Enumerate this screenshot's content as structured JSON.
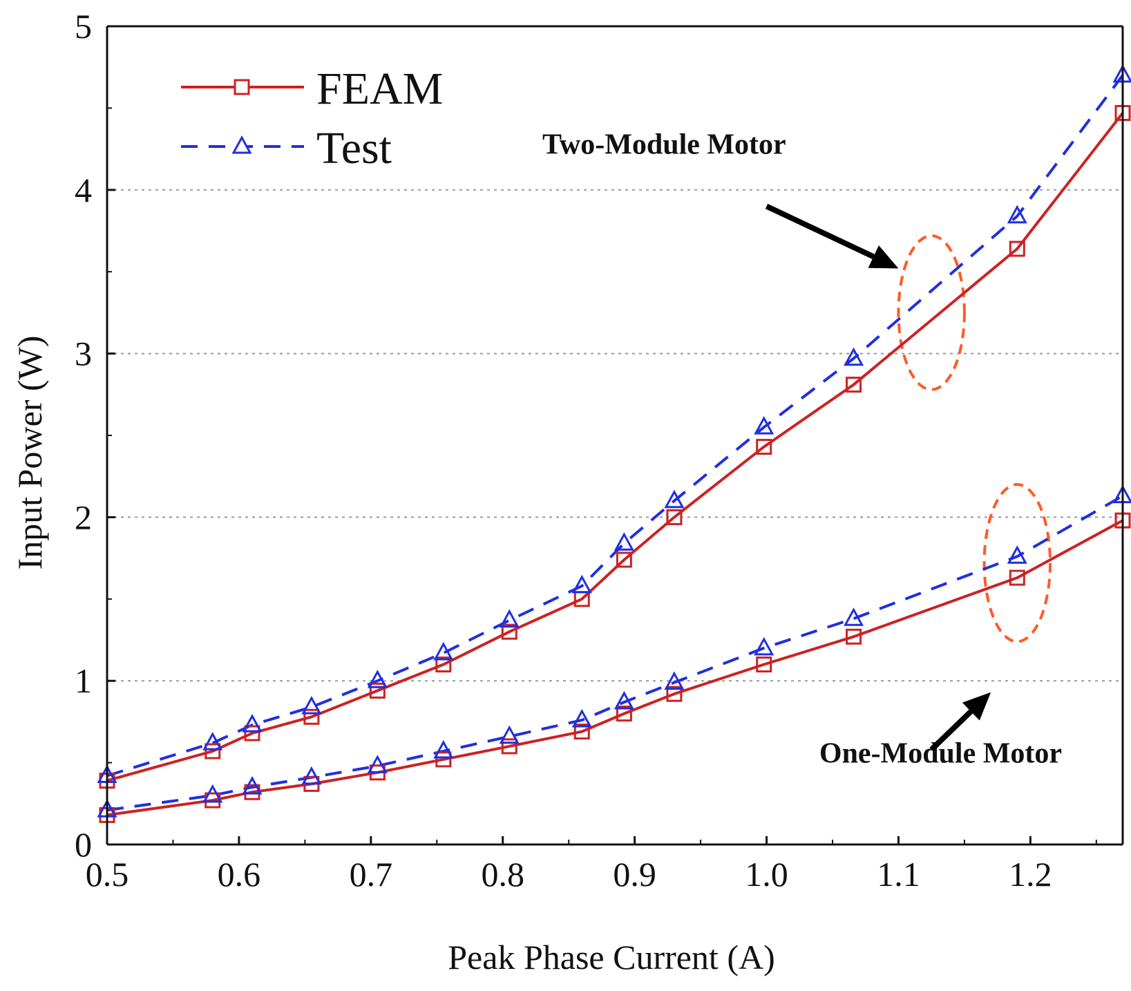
{
  "chart_data": {
    "type": "line",
    "title": "",
    "xlabel": "Peak Phase Current (A)",
    "ylabel": "Input Power (W)",
    "xlim": [
      0.5,
      1.27
    ],
    "ylim": [
      0,
      5
    ],
    "xticks": [
      "0.5",
      "0.6",
      "0.7",
      "0.8",
      "0.9",
      "1.0",
      "1.1",
      "1.2"
    ],
    "xtick_values": [
      0.5,
      0.6,
      0.7,
      0.8,
      0.9,
      1.0,
      1.1,
      1.2
    ],
    "yticks": [
      "0",
      "1",
      "2",
      "3",
      "4",
      "5"
    ],
    "ytick_values": [
      0,
      1,
      2,
      3,
      4,
      5
    ],
    "grid": "horizontal dotted",
    "legend_position": "top-left",
    "colors": {
      "feam": "#cc2222",
      "test": "#1f2fe0",
      "ellipse": "#ff5a28",
      "axis": "#111111",
      "grid": "#999999"
    },
    "legend": [
      {
        "key": "feam",
        "label": "FEAM",
        "marker": "square",
        "style": "solid"
      },
      {
        "key": "test",
        "label": "Test",
        "marker": "triangle",
        "style": "dashed"
      }
    ],
    "series": [
      {
        "name": "FEAM",
        "group": "Two-Module Motor",
        "key": "feam",
        "x": [
          0.5,
          0.58,
          0.61,
          0.655,
          0.705,
          0.755,
          0.805,
          0.86,
          0.892,
          0.93,
          0.998,
          1.066,
          1.19,
          1.27
        ],
        "values": [
          0.39,
          0.57,
          0.68,
          0.78,
          0.94,
          1.1,
          1.3,
          1.5,
          1.74,
          2.0,
          2.43,
          2.81,
          3.64,
          4.47
        ]
      },
      {
        "name": "Test",
        "group": "Two-Module Motor",
        "key": "test",
        "x": [
          0.5,
          0.58,
          0.61,
          0.655,
          0.705,
          0.755,
          0.805,
          0.86,
          0.892,
          0.93,
          0.998,
          1.066,
          1.19,
          1.27
        ],
        "values": [
          0.42,
          0.62,
          0.73,
          0.84,
          1.0,
          1.17,
          1.37,
          1.58,
          1.84,
          2.1,
          2.55,
          2.97,
          3.84,
          4.7
        ]
      },
      {
        "name": "FEAM",
        "group": "One-Module Motor",
        "key": "feam",
        "x": [
          0.5,
          0.58,
          0.61,
          0.655,
          0.705,
          0.755,
          0.805,
          0.86,
          0.892,
          0.93,
          0.998,
          1.066,
          1.19,
          1.27
        ],
        "values": [
          0.18,
          0.27,
          0.32,
          0.37,
          0.44,
          0.52,
          0.6,
          0.69,
          0.8,
          0.92,
          1.1,
          1.27,
          1.63,
          1.98
        ]
      },
      {
        "name": "Test",
        "group": "One-Module Motor",
        "key": "test",
        "x": [
          0.5,
          0.58,
          0.61,
          0.655,
          0.705,
          0.755,
          0.805,
          0.86,
          0.892,
          0.93,
          0.998,
          1.066,
          1.19,
          1.27
        ],
        "values": [
          0.21,
          0.3,
          0.35,
          0.41,
          0.48,
          0.57,
          0.66,
          0.76,
          0.87,
          0.99,
          1.2,
          1.38,
          1.76,
          2.13
        ]
      }
    ],
    "annotations": [
      {
        "text": "Two-Module Motor",
        "label_at": [
          0.83,
          4.22
        ],
        "arrow_from": [
          1.0,
          3.9
        ],
        "arrow_to": [
          1.1,
          3.52
        ]
      },
      {
        "text": "One-Module Motor",
        "label_at": [
          1.04,
          0.5
        ],
        "arrow_from": [
          1.125,
          0.58
        ],
        "arrow_to": [
          1.17,
          0.93
        ]
      }
    ],
    "highlight_ellipses": [
      {
        "center": [
          1.125,
          3.25
        ],
        "radius_x": 0.025,
        "radius_y": 0.47
      },
      {
        "center": [
          1.19,
          1.72
        ],
        "radius_x": 0.025,
        "radius_y": 0.48
      }
    ]
  }
}
